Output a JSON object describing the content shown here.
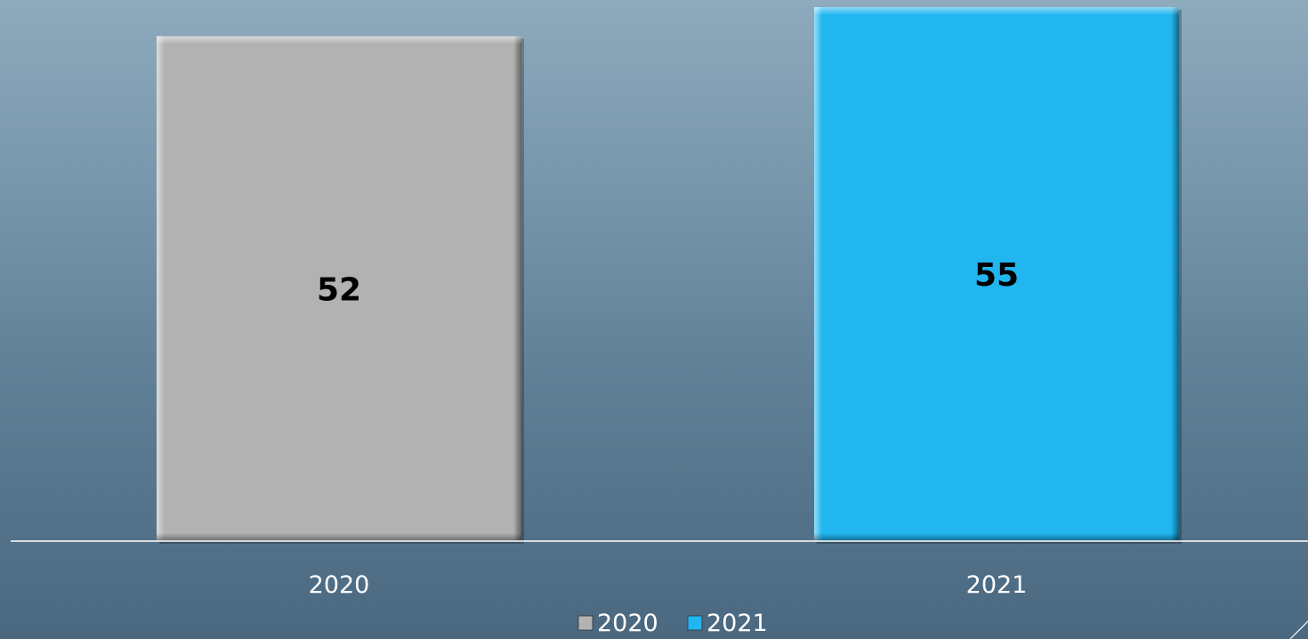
{
  "chart_data": {
    "type": "bar",
    "categories": [
      "2020",
      "2021"
    ],
    "series": [
      {
        "name": "2020",
        "values": [
          52,
          null
        ],
        "color": "#b2b2b2"
      },
      {
        "name": "2021",
        "values": [
          null,
          55
        ],
        "color": "#21b6f0"
      }
    ],
    "data_labels": [
      "52",
      "55"
    ],
    "ylim": [
      0,
      55
    ],
    "legend_position": "bottom",
    "grid": false,
    "title": "",
    "xlabel": "",
    "ylabel": ""
  },
  "colors": {
    "background_top": "#8eaabd",
    "background_bottom": "#4a6880",
    "axis_line": "#ffffff"
  }
}
